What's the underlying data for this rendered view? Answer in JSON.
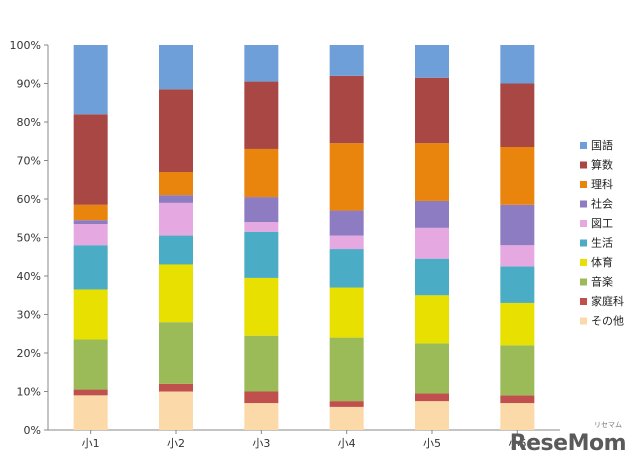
{
  "chart_data": {
    "type": "bar",
    "stacked": true,
    "categories": [
      "小1",
      "小2",
      "小3",
      "小4",
      "小5",
      "小6"
    ],
    "ylim": [
      0,
      100
    ],
    "yticks": [
      "0%",
      "10%",
      "20%",
      "30%",
      "40%",
      "50%",
      "60%",
      "70%",
      "80%",
      "90%",
      "100%"
    ],
    "grid": false,
    "legend_position": "right",
    "series": [
      {
        "name": "その他",
        "color": "#fbd9a8",
        "values": [
          9,
          10,
          7,
          6,
          7.5,
          7
        ]
      },
      {
        "name": "家庭科",
        "color": "#c0504d",
        "values": [
          1.5,
          2,
          3,
          1.5,
          2,
          2
        ]
      },
      {
        "name": "音楽",
        "color": "#9bbb59",
        "values": [
          13,
          16,
          14.5,
          16.5,
          13,
          13
        ]
      },
      {
        "name": "体育",
        "color": "#e8e000",
        "values": [
          13,
          15,
          15,
          13,
          12.5,
          11
        ]
      },
      {
        "name": "生活",
        "color": "#4bacc6",
        "values": [
          11.5,
          7.5,
          12,
          10,
          9.5,
          9.5
        ]
      },
      {
        "name": "図工",
        "color": "#e6a8e0",
        "values": [
          5.5,
          8.5,
          2.5,
          3.5,
          8,
          5.5
        ]
      },
      {
        "name": "社会",
        "color": "#8e7cc3",
        "values": [
          1,
          2,
          6.5,
          6.5,
          7,
          10.5
        ]
      },
      {
        "name": "理科",
        "color": "#e9840c",
        "values": [
          4,
          6,
          12.5,
          17.5,
          15,
          15
        ]
      },
      {
        "name": "算数",
        "color": "#a84743",
        "values": [
          23.5,
          21.5,
          17.5,
          17.5,
          17,
          16.5
        ]
      },
      {
        "name": "国語",
        "color": "#6f9fd8",
        "values": [
          18,
          11.5,
          9.5,
          8,
          8.5,
          10
        ]
      }
    ]
  },
  "watermark": {
    "text": "ReseMom",
    "small": "リセマム"
  }
}
